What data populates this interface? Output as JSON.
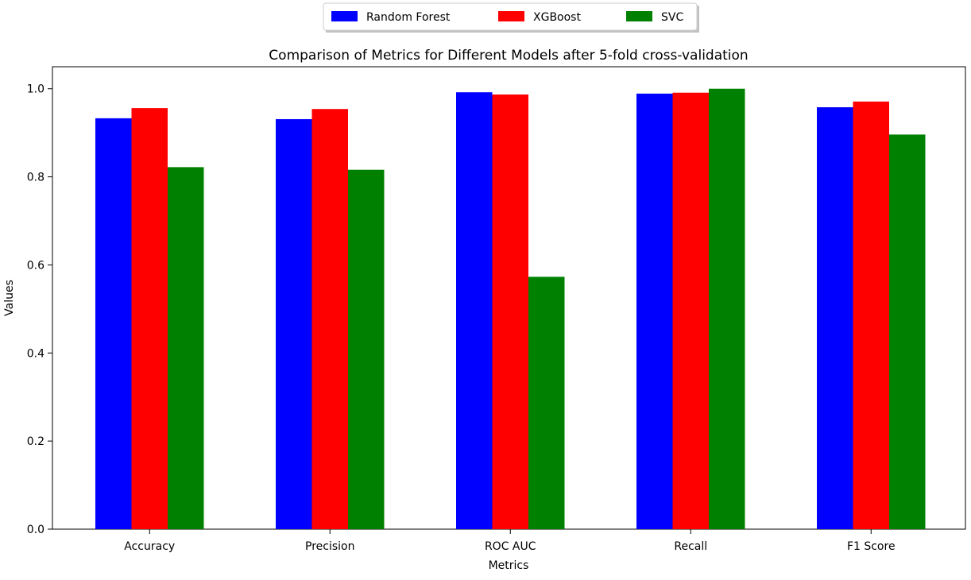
{
  "chart_data": {
    "type": "bar",
    "title": "Comparison of Metrics for Different Models after 5-fold cross-validation",
    "xlabel": "Metrics",
    "ylabel": "Values",
    "categories": [
      "Accuracy",
      "Precision",
      "ROC AUC",
      "Recall",
      "F1 Score"
    ],
    "series": [
      {
        "name": "Random Forest",
        "color": "#0000ff",
        "values": [
          0.933,
          0.931,
          0.992,
          0.989,
          0.958
        ]
      },
      {
        "name": "XGBoost",
        "color": "#ff0000",
        "values": [
          0.956,
          0.954,
          0.987,
          0.991,
          0.971
        ]
      },
      {
        "name": "SVC",
        "color": "#008000",
        "values": [
          0.822,
          0.816,
          0.573,
          1.0,
          0.896
        ]
      }
    ],
    "ylim": [
      0,
      1.05
    ],
    "yticks": [
      "0.0",
      "0.2",
      "0.4",
      "0.6",
      "0.8",
      "1.0"
    ],
    "grid": false,
    "legend_position": "top-center"
  }
}
